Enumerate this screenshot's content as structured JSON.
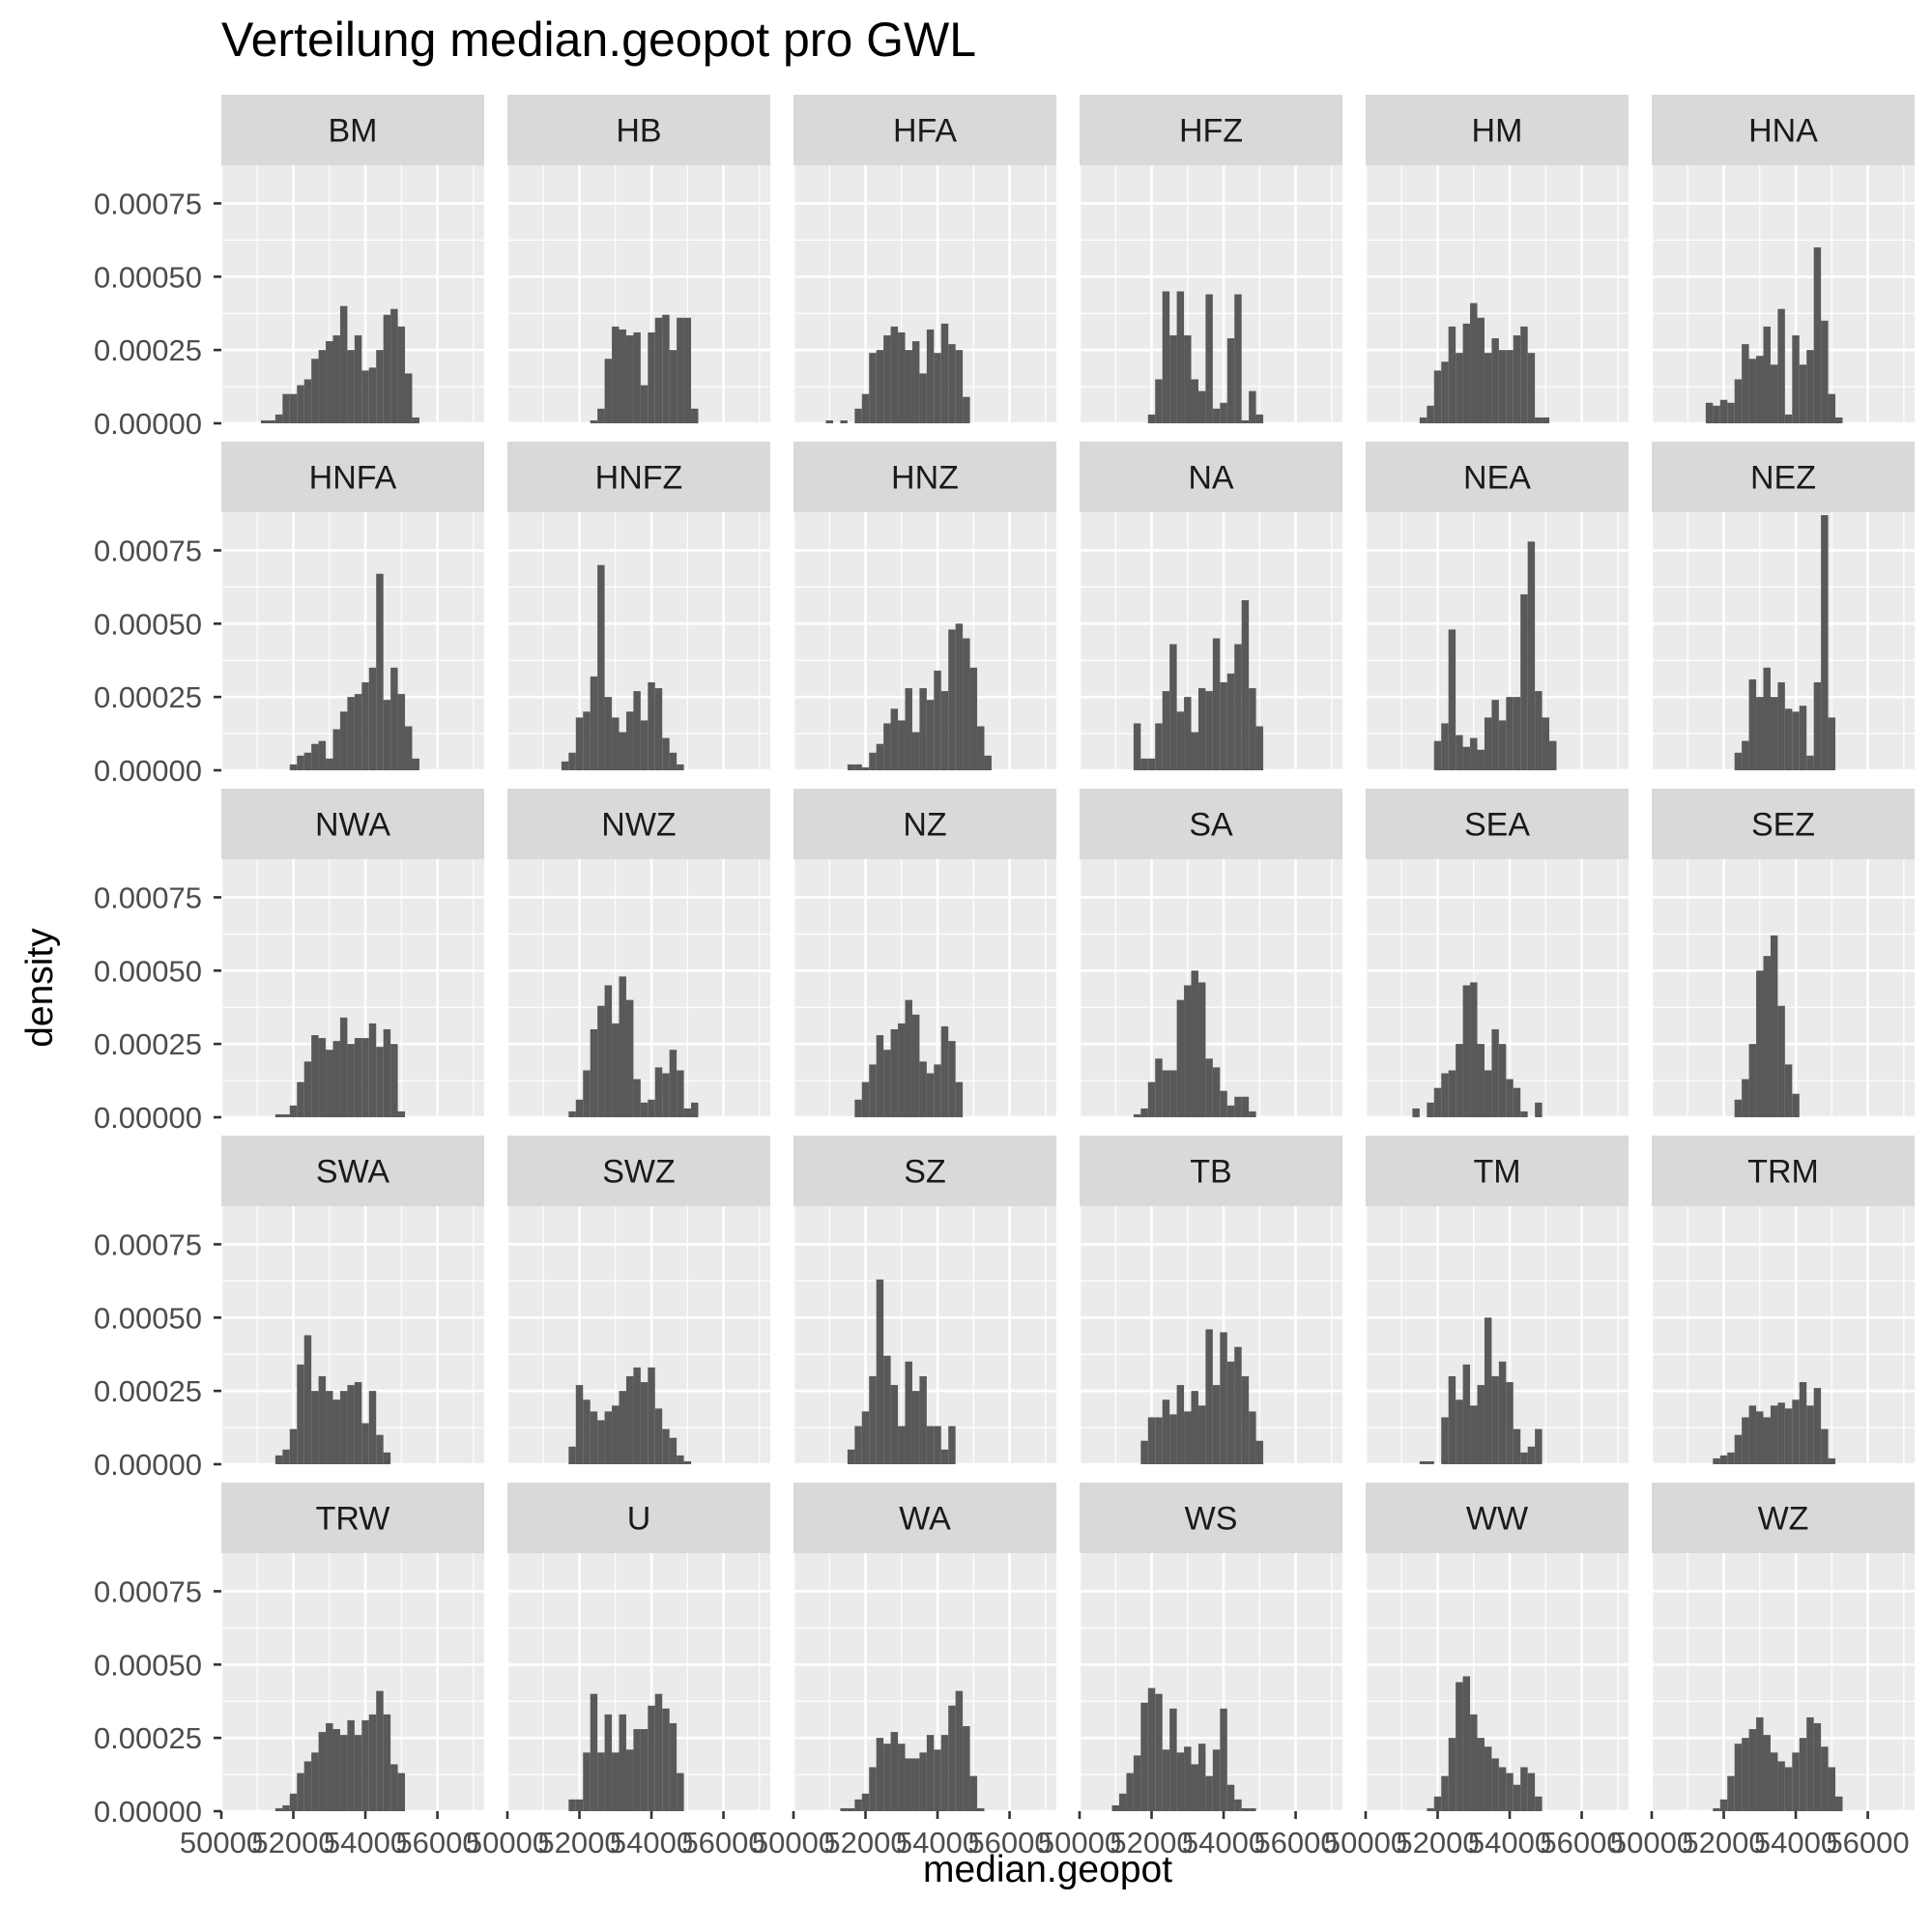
{
  "chart_data": {
    "type": "bar",
    "subtype": "faceted-histogram",
    "title": "Verteilung median.geopot pro GWL",
    "xlabel": "median.geopot",
    "ylabel": "density",
    "xlim": [
      50000,
      57300
    ],
    "ylim": [
      0,
      0.00088
    ],
    "x_ticks": [
      "50000",
      "52000",
      "54000",
      "56000"
    ],
    "y_ticks": [
      "0.00000",
      "0.00025",
      "0.00050",
      "0.00075"
    ],
    "grid": true,
    "facet_layout": {
      "nrow": 5,
      "ncol": 6
    },
    "bin_start": 50500,
    "bin_width": 200,
    "colors": {
      "bar": "#595959",
      "panel": "#ebebeb",
      "strip": "#d9d9d9",
      "grid": "#ffffff"
    },
    "panels": [
      {
        "label": "BM",
        "values": [
          0,
          0,
          0,
          1e-05,
          1e-05,
          3e-05,
          0.0001,
          0.0001,
          0.00013,
          0.00015,
          0.00022,
          0.00025,
          0.00028,
          0.0003,
          0.0004,
          0.00025,
          0.0003,
          0.00018,
          0.00019,
          0.00025,
          0.00037,
          0.00039,
          0.00033,
          0.00017,
          2e-05
        ]
      },
      {
        "label": "HB",
        "values": [
          0,
          0,
          0,
          0,
          0,
          0,
          0,
          0,
          0,
          1e-05,
          5e-05,
          0.00022,
          0.00033,
          0.00032,
          0.0003,
          0.00031,
          0.00013,
          0.00031,
          0.00036,
          0.00037,
          0.00025,
          0.00036,
          0.00036,
          5e-05,
          0
        ]
      },
      {
        "label": "HFA",
        "values": [
          0,
          0,
          1e-05,
          0,
          1e-05,
          0,
          5e-05,
          0.0001,
          0.00024,
          0.00025,
          0.0003,
          0.00033,
          0.00031,
          0.00025,
          0.00028,
          0.00017,
          0.00032,
          0.00024,
          0.00034,
          0.00027,
          0.00025,
          9e-05,
          0,
          0,
          0
        ]
      },
      {
        "label": "HFZ",
        "values": [
          0,
          0,
          0,
          0,
          0,
          0,
          0,
          3e-05,
          0.00015,
          0.00045,
          0.0003,
          0.00045,
          0.0003,
          0.00015,
          0.00011,
          0.00044,
          5e-05,
          7e-05,
          0.00029,
          0.00044,
          1e-05,
          0.00011,
          3e-05,
          0,
          0
        ]
      },
      {
        "label": "HM",
        "values": [
          0,
          0,
          0,
          0,
          0,
          2e-05,
          6e-05,
          0.00018,
          0.00021,
          0.00033,
          0.00024,
          0.00034,
          0.00041,
          0.00036,
          0.00024,
          0.00029,
          0.00025,
          0.00025,
          0.0003,
          0.00033,
          0.00024,
          2e-05,
          2e-05,
          0,
          0
        ]
      },
      {
        "label": "HNA",
        "values": [
          0,
          0,
          0,
          0,
          0,
          7e-05,
          6e-05,
          8e-05,
          7e-05,
          0.00015,
          0.00027,
          0.00022,
          0.00023,
          0.00033,
          0.0002,
          0.00039,
          3e-05,
          0.0003,
          0.0002,
          0.00025,
          0.0006,
          0.00035,
          0.0001,
          2e-05,
          0
        ]
      },
      {
        "label": "HNFA",
        "values": [
          0,
          0,
          0,
          0,
          0,
          0,
          0,
          2e-05,
          5e-05,
          6e-05,
          9e-05,
          0.0001,
          4e-05,
          0.00014,
          0.0002,
          0.00025,
          0.00026,
          0.0003,
          0.00035,
          0.00067,
          0.00024,
          0.00035,
          0.00026,
          0.00015,
          4e-05
        ]
      },
      {
        "label": "HNFZ",
        "values": [
          0,
          0,
          0,
          0,
          0,
          3e-05,
          6e-05,
          0.00018,
          0.0002,
          0.00032,
          0.0007,
          0.00025,
          0.00018,
          0.00013,
          0.0002,
          0.00027,
          0.00017,
          0.0003,
          0.00028,
          0.00011,
          6e-05,
          2e-05,
          0,
          0,
          0
        ]
      },
      {
        "label": "HNZ",
        "values": [
          0,
          0,
          0,
          0,
          0,
          2e-05,
          2e-05,
          1e-05,
          6e-05,
          9e-05,
          0.00016,
          0.00021,
          0.00017,
          0.00028,
          0.00013,
          0.00028,
          0.00024,
          0.00034,
          0.00027,
          0.00048,
          0.0005,
          0.00045,
          0.00035,
          0.00015,
          5e-05
        ]
      },
      {
        "label": "NA",
        "values": [
          0,
          0,
          0,
          0,
          0,
          0.00016,
          4e-05,
          4e-05,
          0.00016,
          0.00027,
          0.00043,
          0.0002,
          0.00025,
          0.00013,
          0.00028,
          0.00027,
          0.00045,
          0.0003,
          0.00033,
          0.00043,
          0.00058,
          0.00028,
          0.00015,
          0,
          0
        ]
      },
      {
        "label": "NEA",
        "values": [
          0,
          0,
          0,
          0,
          0,
          0,
          0,
          0.0001,
          0.00016,
          0.00048,
          0.00012,
          8e-05,
          0.00011,
          7e-05,
          0.00018,
          0.00024,
          0.00017,
          0.00025,
          0.00025,
          0.0006,
          0.00078,
          0.00027,
          0.00018,
          0.0001,
          0
        ]
      },
      {
        "label": "NEZ",
        "values": [
          0,
          0,
          0,
          0,
          0,
          0,
          0,
          0,
          0,
          6e-05,
          0.0001,
          0.00031,
          0.00025,
          0.00035,
          0.00025,
          0.0003,
          0.00021,
          0.0002,
          0.00022,
          5e-05,
          0.0003,
          0.00087,
          0.00018,
          0,
          0
        ]
      },
      {
        "label": "NWA",
        "values": [
          0,
          0,
          0,
          0,
          0,
          1e-05,
          1e-05,
          4e-05,
          0.00012,
          0.00019,
          0.00028,
          0.00027,
          0.00023,
          0.00026,
          0.00034,
          0.00025,
          0.00027,
          0.00027,
          0.00032,
          0.00024,
          0.0003,
          0.00025,
          2e-05,
          0,
          0
        ]
      },
      {
        "label": "NWZ",
        "values": [
          0,
          0,
          0,
          0,
          0,
          0,
          2e-05,
          6e-05,
          0.00016,
          0.0003,
          0.00038,
          0.00045,
          0.00032,
          0.00048,
          0.0004,
          0.00013,
          5e-05,
          6e-05,
          0.00017,
          0.00015,
          0.00023,
          0.00016,
          3e-05,
          5e-05,
          0
        ]
      },
      {
        "label": "NZ",
        "values": [
          0,
          0,
          0,
          0,
          0,
          0,
          6e-05,
          0.00012,
          0.00018,
          0.00028,
          0.00023,
          0.0003,
          0.00032,
          0.0004,
          0.00035,
          0.00019,
          0.00015,
          0.00018,
          0.00031,
          0.00026,
          0.00012,
          0,
          0,
          0,
          0
        ]
      },
      {
        "label": "SA",
        "values": [
          0,
          0,
          0,
          0,
          0,
          1e-05,
          3e-05,
          0.00012,
          0.0002,
          0.00016,
          0.00016,
          0.0004,
          0.00045,
          0.0005,
          0.00046,
          0.0002,
          0.00017,
          9e-05,
          4e-05,
          7e-05,
          7e-05,
          2e-05,
          0,
          0,
          0
        ]
      },
      {
        "label": "SEA",
        "values": [
          0,
          0,
          0,
          0,
          3e-05,
          0,
          5e-05,
          0.0001,
          0.00015,
          0.00016,
          0.00025,
          0.00045,
          0.00046,
          0.00025,
          0.00016,
          0.0003,
          0.00025,
          0.00013,
          0.0001,
          2e-05,
          0,
          5e-05,
          0,
          0,
          0
        ]
      },
      {
        "label": "SEZ",
        "values": [
          0,
          0,
          0,
          0,
          0,
          0,
          0,
          0,
          0,
          6e-05,
          0.00013,
          0.00025,
          0.0005,
          0.00055,
          0.00062,
          0.00038,
          0.00018,
          8e-05,
          0,
          0,
          0,
          0,
          0,
          0,
          0
        ]
      },
      {
        "label": "SWA",
        "values": [
          0,
          0,
          0,
          0,
          0,
          3e-05,
          5e-05,
          0.00012,
          0.00034,
          0.00044,
          0.00025,
          0.0003,
          0.00025,
          0.00022,
          0.00025,
          0.00027,
          0.00028,
          0.00014,
          0.00025,
          0.0001,
          4e-05,
          0,
          0,
          0,
          0
        ]
      },
      {
        "label": "SWZ",
        "values": [
          0,
          0,
          0,
          0,
          0,
          0,
          6e-05,
          0.00027,
          0.00022,
          0.00018,
          0.00015,
          0.00018,
          0.0002,
          0.00025,
          0.0003,
          0.00033,
          0.00028,
          0.00033,
          0.00019,
          0.00012,
          9e-05,
          3e-05,
          1e-05,
          0,
          0
        ]
      },
      {
        "label": "SZ",
        "values": [
          0,
          0,
          0,
          0,
          0,
          5e-05,
          0.00013,
          0.00018,
          0.0003,
          0.00063,
          0.00037,
          0.00027,
          0.00013,
          0.00035,
          0.00025,
          0.0003,
          0.00013,
          0.00013,
          5e-05,
          0.00013,
          0,
          0,
          0,
          0,
          0
        ]
      },
      {
        "label": "TB",
        "values": [
          0,
          0,
          0,
          0,
          0,
          0,
          8e-05,
          0.00016,
          0.00016,
          0.00022,
          0.00017,
          0.00027,
          0.00018,
          0.00025,
          0.0002,
          0.00046,
          0.00027,
          0.00045,
          0.00035,
          0.0004,
          0.0003,
          0.00018,
          8e-05,
          0,
          0
        ]
      },
      {
        "label": "TM",
        "values": [
          0,
          0,
          0,
          0,
          0,
          1e-05,
          1e-05,
          0,
          0.00016,
          0.0003,
          0.00022,
          0.00034,
          0.0002,
          0.00027,
          0.0005,
          0.0003,
          0.00035,
          0.00028,
          0.00012,
          4e-05,
          6e-05,
          0.00012,
          0,
          0,
          0
        ]
      },
      {
        "label": "TRM",
        "values": [
          0,
          0,
          0,
          0,
          0,
          0,
          2e-05,
          3e-05,
          4e-05,
          0.0001,
          0.00016,
          0.0002,
          0.00018,
          0.00016,
          0.0002,
          0.00021,
          0.00019,
          0.00022,
          0.00028,
          0.0002,
          0.00026,
          0.00012,
          2e-05,
          0,
          0
        ]
      },
      {
        "label": "TRW",
        "values": [
          0,
          0,
          0,
          0,
          0,
          1e-05,
          2e-05,
          6e-05,
          0.00013,
          0.00017,
          0.0002,
          0.00027,
          0.0003,
          0.00028,
          0.00026,
          0.00031,
          0.00026,
          0.00031,
          0.00033,
          0.00041,
          0.00033,
          0.00016,
          0.00013,
          0,
          0
        ]
      },
      {
        "label": "U",
        "values": [
          0,
          0,
          0,
          0,
          0,
          0,
          4e-05,
          4e-05,
          0.0002,
          0.0004,
          0.0002,
          0.00033,
          0.0002,
          0.00033,
          0.00021,
          0.00028,
          0.00028,
          0.00036,
          0.0004,
          0.00035,
          0.0003,
          0.00013,
          0,
          0,
          0
        ]
      },
      {
        "label": "WA",
        "values": [
          0,
          0,
          0,
          0,
          1e-05,
          1e-05,
          4e-05,
          6e-05,
          0.00015,
          0.00025,
          0.00023,
          0.00027,
          0.00023,
          0.00018,
          0.00018,
          0.0002,
          0.00026,
          0.00021,
          0.00026,
          0.00036,
          0.00041,
          0.00029,
          0.00012,
          1e-05,
          0
        ]
      },
      {
        "label": "WS",
        "values": [
          0,
          0,
          2e-05,
          6e-05,
          0.00013,
          0.00019,
          0.00037,
          0.00042,
          0.0004,
          0.00021,
          0.00035,
          0.0002,
          0.00022,
          0.00016,
          0.00023,
          0.00012,
          0.00021,
          0.00035,
          9e-05,
          4e-05,
          1e-05,
          1e-05,
          0,
          0,
          0
        ]
      },
      {
        "label": "WW",
        "values": [
          0,
          0,
          0,
          0,
          0,
          0,
          1e-05,
          5e-05,
          0.00012,
          0.00025,
          0.00044,
          0.00046,
          0.00033,
          0.00025,
          0.00022,
          0.00018,
          0.00015,
          0.00013,
          9e-05,
          0.00015,
          0.00013,
          5e-05,
          0,
          0,
          0
        ]
      },
      {
        "label": "WZ",
        "values": [
          0,
          0,
          0,
          0,
          0,
          0,
          1e-05,
          4e-05,
          0.00012,
          0.00023,
          0.00025,
          0.00028,
          0.00032,
          0.00026,
          0.0002,
          0.00017,
          0.00015,
          0.0002,
          0.00025,
          0.00032,
          0.0003,
          0.00022,
          0.00015,
          5e-05,
          0
        ]
      }
    ]
  }
}
